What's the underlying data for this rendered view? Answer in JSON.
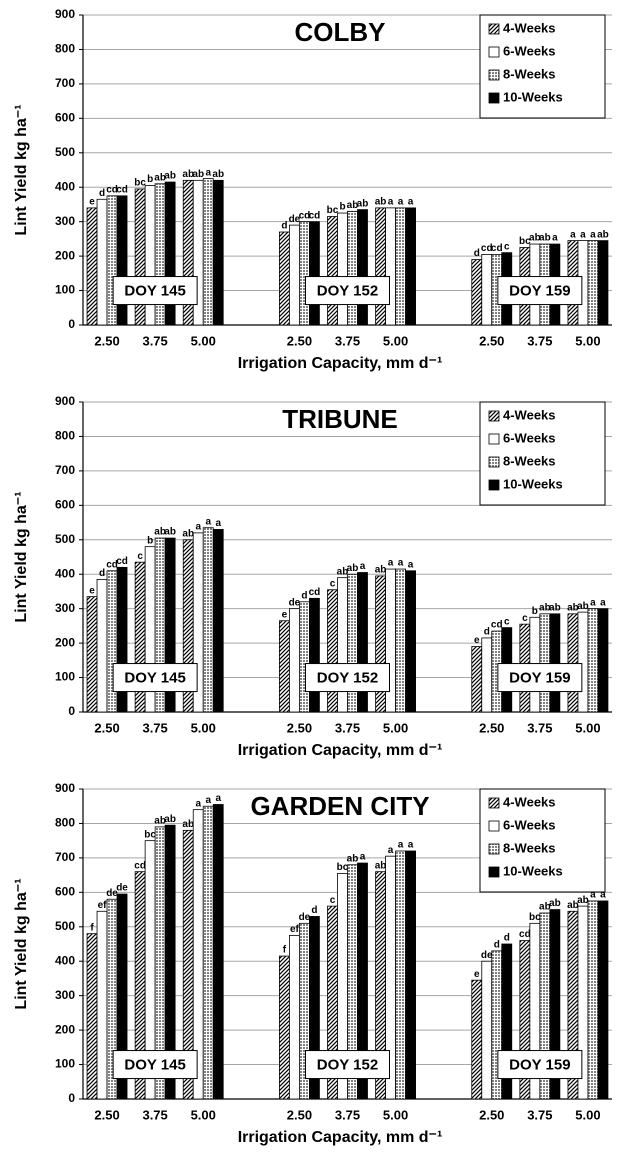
{
  "chart_data": [
    {
      "type": "bar",
      "title": "COLBY",
      "ylabel": "Lint Yield kg ha⁻¹",
      "xlabel": "Irrigation Capacity, mm d⁻¹",
      "categories": [
        "2.50",
        "3.75",
        "5.00",
        "2.50",
        "3.75",
        "5.00",
        "2.50",
        "3.75",
        "5.00"
      ],
      "groups": [
        "DOY 145",
        "DOY 152",
        "DOY 159"
      ],
      "ylim": [
        0,
        900
      ],
      "yticks": [
        0,
        100,
        200,
        300,
        400,
        500,
        600,
        700,
        800,
        900
      ],
      "grid": true,
      "legend": "upper right",
      "series": [
        {
          "name": "4-Weeks",
          "color": "#000000",
          "pattern": "diagonal",
          "values": [
            340,
            395,
            420,
            270,
            315,
            340,
            190,
            225,
            245
          ],
          "letters": [
            "e",
            "bc",
            "ab",
            "d",
            "bc",
            "ab",
            "d",
            "bc",
            "a"
          ]
        },
        {
          "name": "6-Weeks",
          "color": "#ffffff",
          "pattern": "none",
          "values": [
            365,
            405,
            420,
            290,
            325,
            340,
            205,
            235,
            245
          ],
          "letters": [
            "d",
            "b",
            "ab",
            "de",
            "b",
            "a",
            "cd",
            "ab",
            "a"
          ]
        },
        {
          "name": "8-Weeks",
          "color": "#a0a0a0",
          "pattern": "dotted",
          "values": [
            375,
            410,
            425,
            300,
            330,
            340,
            205,
            235,
            245
          ],
          "letters": [
            "cd",
            "ab",
            "a",
            "cd",
            "ab",
            "a",
            "cd",
            "ab",
            "a"
          ]
        },
        {
          "name": "10-Weeks",
          "color": "#000000",
          "pattern": "none",
          "values": [
            375,
            415,
            420,
            300,
            335,
            340,
            210,
            235,
            245
          ],
          "letters": [
            "cd",
            "ab",
            "ab",
            "cd",
            "ab",
            "a",
            "c",
            "a",
            "ab"
          ]
        }
      ]
    },
    {
      "type": "bar",
      "title": "TRIBUNE",
      "ylabel": "Lint Yield kg ha⁻¹",
      "xlabel": "Irrigation Capacity, mm d⁻¹",
      "categories": [
        "2.50",
        "3.75",
        "5.00",
        "2.50",
        "3.75",
        "5.00",
        "2.50",
        "3.75",
        "5.00"
      ],
      "groups": [
        "DOY 145",
        "DOY 152",
        "DOY 159"
      ],
      "ylim": [
        0,
        900
      ],
      "yticks": [
        0,
        100,
        200,
        300,
        400,
        500,
        600,
        700,
        800,
        900
      ],
      "grid": true,
      "legend": "upper right",
      "series": [
        {
          "name": "4-Weeks",
          "color": "#000000",
          "pattern": "diagonal",
          "values": [
            335,
            435,
            500,
            265,
            355,
            395,
            190,
            255,
            285
          ],
          "letters": [
            "e",
            "c",
            "ab",
            "e",
            "c",
            "ab",
            "e",
            "c",
            "ab"
          ]
        },
        {
          "name": "6-Weeks",
          "color": "#ffffff",
          "pattern": "none",
          "values": [
            385,
            480,
            520,
            300,
            390,
            415,
            215,
            275,
            290
          ],
          "letters": [
            "d",
            "b",
            "a",
            "de",
            "ab",
            "a",
            "d",
            "b",
            "ab"
          ]
        },
        {
          "name": "8-Weeks",
          "color": "#a0a0a0",
          "pattern": "dotted",
          "values": [
            410,
            505,
            535,
            320,
            400,
            415,
            235,
            285,
            300
          ],
          "letters": [
            "cd",
            "ab",
            "a",
            "d",
            "ab",
            "a",
            "cd",
            "ab",
            "a"
          ]
        },
        {
          "name": "10-Weeks",
          "color": "#000000",
          "pattern": "none",
          "values": [
            420,
            505,
            530,
            330,
            405,
            410,
            245,
            285,
            300
          ],
          "letters": [
            "cd",
            "ab",
            "a",
            "cd",
            "a",
            "a",
            "c",
            "ab",
            "a"
          ]
        }
      ]
    },
    {
      "type": "bar",
      "title": "GARDEN CITY",
      "ylabel": "Lint Yield kg ha⁻¹",
      "xlabel": "Irrigation Capacity, mm d⁻¹",
      "categories": [
        "2.50",
        "3.75",
        "5.00",
        "2.50",
        "3.75",
        "5.00",
        "2.50",
        "3.75",
        "5.00"
      ],
      "groups": [
        "DOY 145",
        "DOY 152",
        "DOY 159"
      ],
      "ylim": [
        0,
        900
      ],
      "yticks": [
        0,
        100,
        200,
        300,
        400,
        500,
        600,
        700,
        800,
        900
      ],
      "grid": true,
      "legend": "upper right",
      "series": [
        {
          "name": "4-Weeks",
          "color": "#000000",
          "pattern": "diagonal",
          "values": [
            480,
            660,
            780,
            415,
            560,
            660,
            345,
            460,
            545
          ],
          "letters": [
            "f",
            "cd",
            "ab",
            "f",
            "c",
            "ab",
            "e",
            "cd",
            "ab"
          ]
        },
        {
          "name": "6-Weeks",
          "color": "#ffffff",
          "pattern": "none",
          "values": [
            545,
            750,
            840,
            475,
            655,
            705,
            400,
            510,
            560
          ],
          "letters": [
            "ef",
            "bc",
            "a",
            "ef",
            "bc",
            "a",
            "de",
            "bc",
            "ab"
          ]
        },
        {
          "name": "8-Weeks",
          "color": "#a0a0a0",
          "pattern": "dotted",
          "values": [
            580,
            790,
            850,
            510,
            680,
            720,
            430,
            540,
            575
          ],
          "letters": [
            "de",
            "ab",
            "a",
            "de",
            "ab",
            "a",
            "d",
            "ab",
            "a"
          ]
        },
        {
          "name": "10-Weeks",
          "color": "#000000",
          "pattern": "none",
          "values": [
            595,
            795,
            855,
            530,
            685,
            720,
            450,
            550,
            575
          ],
          "letters": [
            "de",
            "ab",
            "a",
            "d",
            "a",
            "a",
            "d",
            "ab",
            "a"
          ]
        }
      ]
    }
  ]
}
